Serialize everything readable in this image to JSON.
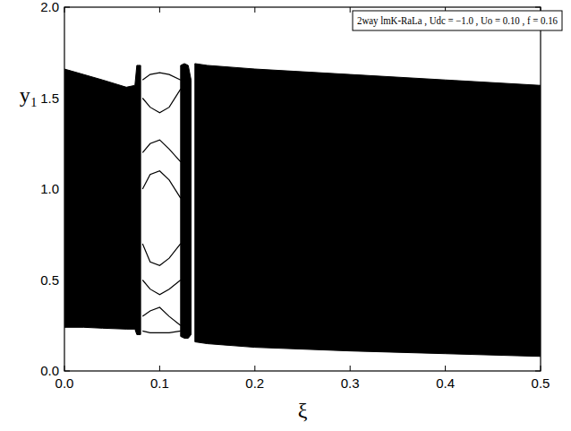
{
  "chart_data": {
    "type": "bifurcation",
    "title": "2way lmK-RaLa , Udc = −1.0 , Uo = 0.10 , f = 0.16",
    "x_label": "ξ",
    "y_label": "y₁",
    "color": "#000000",
    "xlim": [
      0,
      0.5
    ],
    "ylim": [
      0,
      2
    ],
    "xticks": [
      {
        "value": 0,
        "label": "0.0"
      },
      {
        "value": 0.1,
        "label": "0.1"
      },
      {
        "value": 0.2,
        "label": "0.2"
      },
      {
        "value": 0.3,
        "label": "0.3"
      },
      {
        "value": 0.4,
        "label": "0.4"
      },
      {
        "value": 0.5,
        "label": "0.5"
      }
    ],
    "yticks": [
      {
        "value": 0,
        "label": "0.0"
      },
      {
        "value": 0.5,
        "label": "0.5"
      },
      {
        "value": 1,
        "label": "1.0"
      },
      {
        "value": 1.5,
        "label": "1.5"
      },
      {
        "value": 2,
        "label": "2.0"
      }
    ],
    "series": [
      {
        "type": "band",
        "x": [
          0,
          0.02,
          0.04,
          0.065,
          0.074,
          0.076,
          0.08
        ],
        "values": [
          1.66,
          1.63,
          1.6,
          1.56,
          1.57,
          1.68,
          1.68
        ],
        "lower": [
          0.24,
          0.24,
          0.235,
          0.23,
          0.23,
          0.2,
          0.2
        ]
      },
      {
        "type": "band",
        "x": [
          0.122,
          0.126,
          0.13,
          0.133
        ],
        "values": [
          1.68,
          1.69,
          1.68,
          1.6
        ],
        "lower": [
          0.19,
          0.18,
          0.18,
          0.2
        ]
      },
      {
        "type": "band",
        "x": [
          0.137,
          0.15,
          0.2,
          0.3,
          0.4,
          0.5
        ],
        "values": [
          1.69,
          1.68,
          1.66,
          1.63,
          1.6,
          1.57
        ],
        "lower": [
          0.16,
          0.15,
          0.13,
          0.11,
          0.095,
          0.08
        ]
      },
      {
        "type": "line",
        "x": [
          0.082,
          0.09,
          0.1,
          0.11,
          0.122
        ],
        "values": [
          1.6,
          1.63,
          1.64,
          1.63,
          1.6
        ]
      },
      {
        "type": "line",
        "x": [
          0.082,
          0.09,
          0.1,
          0.11,
          0.122
        ],
        "values": [
          1.5,
          1.45,
          1.42,
          1.45,
          1.55
        ]
      },
      {
        "type": "line",
        "x": [
          0.082,
          0.09,
          0.1,
          0.11,
          0.122
        ],
        "values": [
          1.2,
          1.25,
          1.27,
          1.22,
          1.15
        ]
      },
      {
        "type": "line",
        "x": [
          0.082,
          0.09,
          0.1,
          0.11,
          0.122
        ],
        "values": [
          1.0,
          1.08,
          1.1,
          1.05,
          0.95
        ]
      },
      {
        "type": "line",
        "x": [
          0.082,
          0.09,
          0.1,
          0.11,
          0.122
        ],
        "values": [
          0.7,
          0.6,
          0.58,
          0.62,
          0.7
        ]
      },
      {
        "type": "line",
        "x": [
          0.082,
          0.09,
          0.1,
          0.11,
          0.122
        ],
        "values": [
          0.5,
          0.45,
          0.42,
          0.45,
          0.5
        ]
      },
      {
        "type": "line",
        "x": [
          0.082,
          0.09,
          0.1,
          0.11,
          0.122
        ],
        "values": [
          0.3,
          0.33,
          0.35,
          0.3,
          0.25
        ]
      },
      {
        "type": "line",
        "x": [
          0.082,
          0.09,
          0.1,
          0.11,
          0.122
        ],
        "values": [
          0.22,
          0.21,
          0.21,
          0.21,
          0.22
        ]
      }
    ]
  }
}
